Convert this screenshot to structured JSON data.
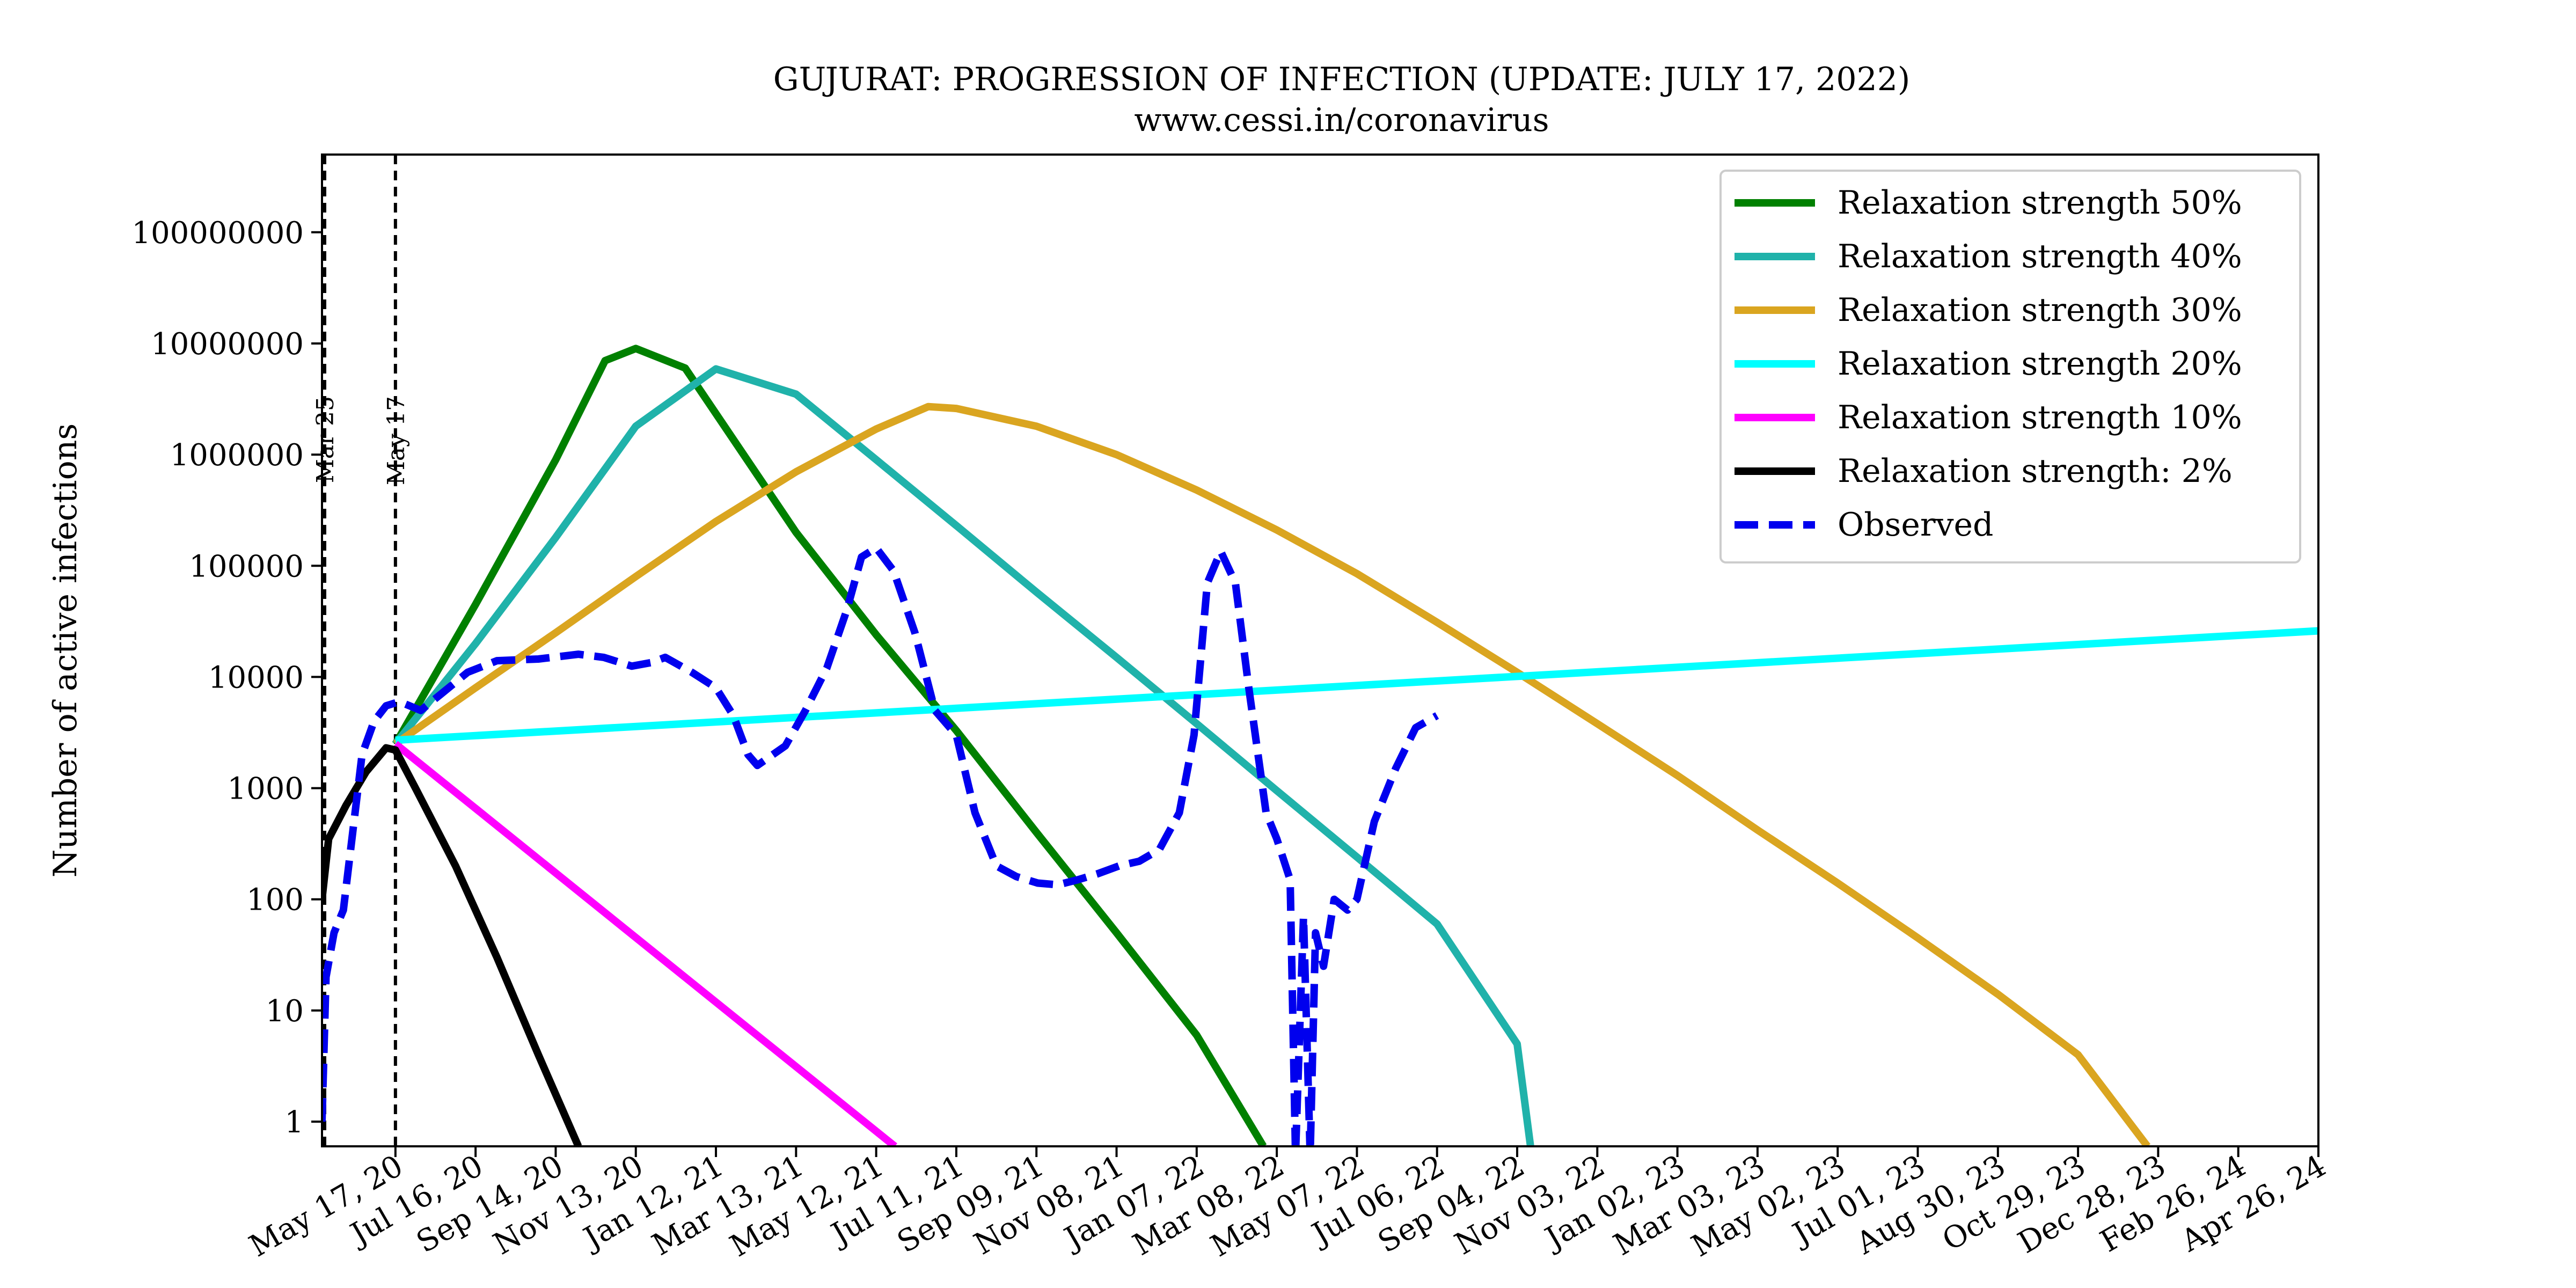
{
  "chart_data": {
    "type": "line",
    "title": "GUJURAT: PROGRESSION OF INFECTION (UPDATE: JULY 17, 2022)",
    "subtitle": "www.cessi.in/coronavirus",
    "ylabel": "Number of active infections",
    "xlabel": "",
    "y_scale": "log",
    "ylim": [
      0.6,
      500000000
    ],
    "xlim": [
      "2020-03-23",
      "2024-04-26"
    ],
    "grid": false,
    "legend_position": "top-right",
    "x_ticks": [
      {
        "date": "2020-05-17",
        "label": "May 17, 20"
      },
      {
        "date": "2020-07-16",
        "label": "Jul 16, 20"
      },
      {
        "date": "2020-09-14",
        "label": "Sep 14, 20"
      },
      {
        "date": "2020-11-13",
        "label": "Nov 13, 20"
      },
      {
        "date": "2021-01-12",
        "label": "Jan 12, 21"
      },
      {
        "date": "2021-03-13",
        "label": "Mar 13, 21"
      },
      {
        "date": "2021-05-12",
        "label": "May 12, 21"
      },
      {
        "date": "2021-07-11",
        "label": "Jul 11, 21"
      },
      {
        "date": "2021-09-09",
        "label": "Sep 09, 21"
      },
      {
        "date": "2021-11-08",
        "label": "Nov 08, 21"
      },
      {
        "date": "2022-01-07",
        "label": "Jan 07, 22"
      },
      {
        "date": "2022-03-08",
        "label": "Mar 08, 22"
      },
      {
        "date": "2022-05-07",
        "label": "May 07, 22"
      },
      {
        "date": "2022-07-06",
        "label": "Jul 06, 22"
      },
      {
        "date": "2022-09-04",
        "label": "Sep 04, 22"
      },
      {
        "date": "2022-11-03",
        "label": "Nov 03, 22"
      },
      {
        "date": "2023-01-02",
        "label": "Jan 02, 23"
      },
      {
        "date": "2023-03-03",
        "label": "Mar 03, 23"
      },
      {
        "date": "2023-05-02",
        "label": "May 02, 23"
      },
      {
        "date": "2023-07-01",
        "label": "Jul 01, 23"
      },
      {
        "date": "2023-08-30",
        "label": "Aug 30, 23"
      },
      {
        "date": "2023-10-29",
        "label": "Oct 29, 23"
      },
      {
        "date": "2023-12-28",
        "label": "Dec 28, 23"
      },
      {
        "date": "2024-02-26",
        "label": "Feb 26, 24"
      },
      {
        "date": "2024-04-26",
        "label": "Apr 26, 24"
      }
    ],
    "y_ticks": [
      {
        "value": 1,
        "label": "1"
      },
      {
        "value": 10,
        "label": "10"
      },
      {
        "value": 100,
        "label": "100"
      },
      {
        "value": 1000,
        "label": "1000"
      },
      {
        "value": 10000,
        "label": "10000"
      },
      {
        "value": 100000,
        "label": "100000"
      },
      {
        "value": 1000000,
        "label": "1000000"
      },
      {
        "value": 10000000,
        "label": "10000000"
      },
      {
        "value": 100000000,
        "label": "100000000"
      }
    ],
    "vlines": [
      {
        "date": "2020-03-25",
        "label": "Mar 25"
      },
      {
        "date": "2020-05-17",
        "label": "May 17"
      }
    ],
    "series": [
      {
        "name": "Relaxation strength 50%",
        "color": "#008000",
        "style": "solid",
        "points": [
          [
            "2020-05-17",
            2500
          ],
          [
            "2020-07-16",
            45000
          ],
          [
            "2020-09-14",
            900000
          ],
          [
            "2020-10-21",
            7000000
          ],
          [
            "2020-11-13",
            9000000
          ],
          [
            "2020-12-20",
            6000000
          ],
          [
            "2021-03-13",
            200000
          ],
          [
            "2021-05-12",
            24000
          ],
          [
            "2021-07-11",
            3300
          ],
          [
            "2021-09-09",
            400
          ],
          [
            "2021-11-08",
            50
          ],
          [
            "2022-01-07",
            6
          ],
          [
            "2022-02-26",
            0.6
          ]
        ]
      },
      {
        "name": "Relaxation strength 40%",
        "color": "#20B2AA",
        "style": "solid",
        "points": [
          [
            "2020-05-17",
            2500
          ],
          [
            "2020-07-16",
            20000
          ],
          [
            "2020-09-14",
            180000
          ],
          [
            "2020-11-13",
            1800000
          ],
          [
            "2021-01-12",
            5900000
          ],
          [
            "2021-03-13",
            3500000
          ],
          [
            "2021-05-12",
            900000
          ],
          [
            "2021-07-11",
            230000
          ],
          [
            "2021-09-09",
            58000
          ],
          [
            "2021-11-08",
            15000
          ],
          [
            "2022-01-07",
            3800
          ],
          [
            "2022-03-08",
            950
          ],
          [
            "2022-05-07",
            240
          ],
          [
            "2022-07-06",
            60
          ],
          [
            "2022-09-04",
            5
          ],
          [
            "2022-09-14",
            0.6
          ]
        ]
      },
      {
        "name": "Relaxation strength 30%",
        "color": "#DAA520",
        "style": "solid",
        "points": [
          [
            "2020-05-17",
            2500
          ],
          [
            "2020-07-16",
            8000
          ],
          [
            "2020-09-14",
            25000
          ],
          [
            "2020-11-13",
            80000
          ],
          [
            "2021-01-12",
            250000
          ],
          [
            "2021-03-13",
            700000
          ],
          [
            "2021-05-12",
            1700000
          ],
          [
            "2021-06-20",
            2700000
          ],
          [
            "2021-07-11",
            2600000
          ],
          [
            "2021-09-09",
            1800000
          ],
          [
            "2021-11-08",
            1000000
          ],
          [
            "2022-01-07",
            480000
          ],
          [
            "2022-03-08",
            210000
          ],
          [
            "2022-05-07",
            85000
          ],
          [
            "2022-07-06",
            31000
          ],
          [
            "2022-09-04",
            11000
          ],
          [
            "2022-11-03",
            3800
          ],
          [
            "2023-01-02",
            1300
          ],
          [
            "2023-03-03",
            420
          ],
          [
            "2023-05-02",
            140
          ],
          [
            "2023-07-01",
            45
          ],
          [
            "2023-08-30",
            14
          ],
          [
            "2023-10-29",
            4
          ],
          [
            "2023-12-20",
            0.6
          ]
        ]
      },
      {
        "name": "Relaxation strength 20%",
        "color": "#00FFFF",
        "style": "solid",
        "points": [
          [
            "2020-05-17",
            2700
          ],
          [
            "2024-04-26",
            26000
          ]
        ]
      },
      {
        "name": "Relaxation strength 10%",
        "color": "#FF00FF",
        "style": "solid",
        "points": [
          [
            "2020-05-17",
            2500
          ],
          [
            "2021-05-26",
            0.6
          ]
        ]
      },
      {
        "name": "Relaxation strength: 2%",
        "color": "#000000",
        "style": "solid",
        "points": [
          [
            "2020-03-23",
            100
          ],
          [
            "2020-03-28",
            350
          ],
          [
            "2020-04-10",
            700
          ],
          [
            "2020-04-25",
            1400
          ],
          [
            "2020-05-10",
            2300
          ],
          [
            "2020-05-17",
            2200
          ],
          [
            "2020-06-01",
            1000
          ],
          [
            "2020-07-01",
            200
          ],
          [
            "2020-08-01",
            30
          ],
          [
            "2020-09-01",
            4
          ],
          [
            "2020-10-01",
            0.6
          ]
        ]
      },
      {
        "name": "Observed",
        "color": "#0000EE",
        "style": "dashed",
        "points": [
          [
            "2020-03-23",
            1
          ],
          [
            "2020-03-26",
            20
          ],
          [
            "2020-04-01",
            50
          ],
          [
            "2020-04-08",
            80
          ],
          [
            "2020-04-15",
            400
          ],
          [
            "2020-04-22",
            2000
          ],
          [
            "2020-05-01",
            4000
          ],
          [
            "2020-05-10",
            5500
          ],
          [
            "2020-05-20",
            6000
          ],
          [
            "2020-06-05",
            5000
          ],
          [
            "2020-06-20",
            7000
          ],
          [
            "2020-07-10",
            11000
          ],
          [
            "2020-08-01",
            14000
          ],
          [
            "2020-09-01",
            14500
          ],
          [
            "2020-10-01",
            16000
          ],
          [
            "2020-10-20",
            15000
          ],
          [
            "2020-11-10",
            12500
          ],
          [
            "2020-11-25",
            13500
          ],
          [
            "2020-12-05",
            15000
          ],
          [
            "2020-12-25",
            11000
          ],
          [
            "2021-01-12",
            8000
          ],
          [
            "2021-01-25",
            4500
          ],
          [
            "2021-02-05",
            2000
          ],
          [
            "2021-02-12",
            1600
          ],
          [
            "2021-03-05",
            2400
          ],
          [
            "2021-03-20",
            5000
          ],
          [
            "2021-04-05",
            12000
          ],
          [
            "2021-04-20",
            40000
          ],
          [
            "2021-05-01",
            120000
          ],
          [
            "2021-05-12",
            145000
          ],
          [
            "2021-05-25",
            90000
          ],
          [
            "2021-06-10",
            25000
          ],
          [
            "2021-06-25",
            5000
          ],
          [
            "2021-07-11",
            3000
          ],
          [
            "2021-07-25",
            600
          ],
          [
            "2021-08-10",
            200
          ],
          [
            "2021-08-25",
            160
          ],
          [
            "2021-09-10",
            140
          ],
          [
            "2021-09-25",
            135
          ],
          [
            "2021-10-10",
            150
          ],
          [
            "2021-10-25",
            170
          ],
          [
            "2021-11-10",
            200
          ],
          [
            "2021-11-25",
            220
          ],
          [
            "2021-12-10",
            280
          ],
          [
            "2021-12-25",
            600
          ],
          [
            "2022-01-05",
            3000
          ],
          [
            "2022-01-15",
            70000
          ],
          [
            "2022-01-25",
            135000
          ],
          [
            "2022-02-05",
            70000
          ],
          [
            "2022-02-15",
            8000
          ],
          [
            "2022-02-28",
            600
          ],
          [
            "2022-03-08",
            350
          ],
          [
            "2022-03-18",
            150
          ],
          [
            "2022-03-22",
            0.5
          ],
          [
            "2022-03-28",
            70
          ],
          [
            "2022-04-02",
            0.5
          ],
          [
            "2022-04-06",
            50
          ],
          [
            "2022-04-12",
            25
          ],
          [
            "2022-04-20",
            100
          ],
          [
            "2022-04-30",
            80
          ],
          [
            "2022-05-07",
            100
          ],
          [
            "2022-05-20",
            500
          ],
          [
            "2022-06-05",
            1500
          ],
          [
            "2022-06-20",
            3500
          ],
          [
            "2022-07-06",
            4500
          ]
        ]
      }
    ]
  }
}
